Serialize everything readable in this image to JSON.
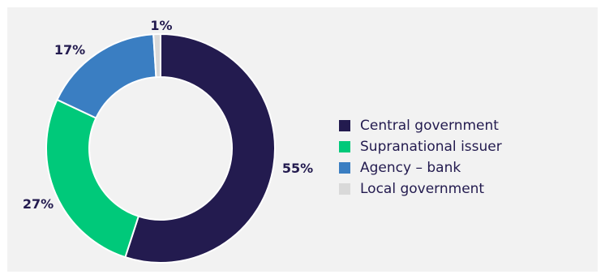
{
  "chart_data": {
    "type": "pie",
    "donut": true,
    "legend_position": "right",
    "slices": [
      {
        "label": "Central government",
        "value": 55,
        "display": "55%",
        "color": "#231b4f"
      },
      {
        "label": "Supranational issuer",
        "value": 27,
        "display": "27%",
        "color": "#00c97a"
      },
      {
        "label": "Agency – bank",
        "value": 17,
        "display": "17%",
        "color": "#3a7ec2"
      },
      {
        "label": "Local government",
        "value": 1,
        "display": "1%",
        "color": "#d9d9d9"
      }
    ]
  },
  "background_color": "#f2f2f2"
}
